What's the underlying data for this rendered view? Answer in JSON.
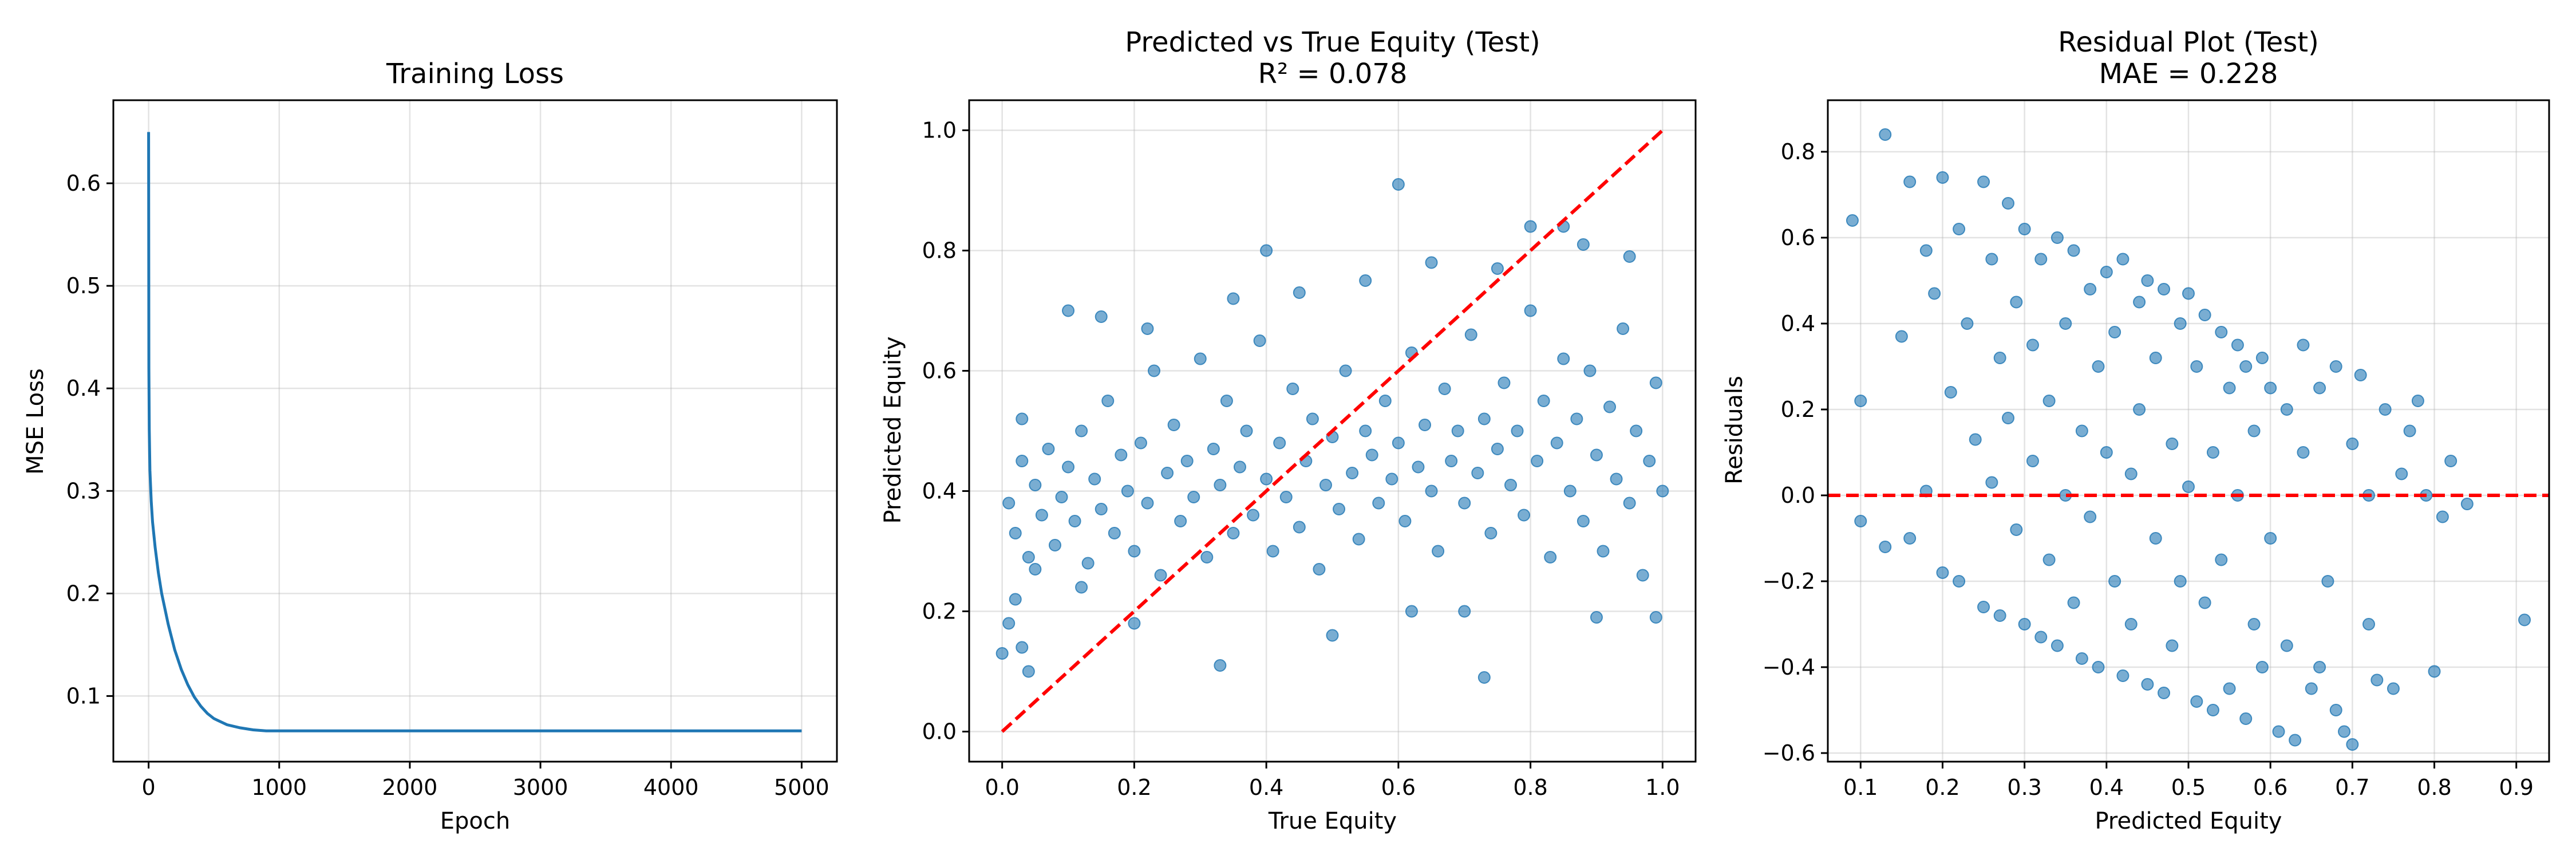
{
  "chart_data": [
    {
      "type": "line",
      "title": "Training Loss",
      "xlabel": "Epoch",
      "ylabel": "MSE Loss",
      "xlim": [
        -270,
        5270
      ],
      "ylim": [
        0.036,
        0.681
      ],
      "xticks": [
        0,
        1000,
        2000,
        3000,
        4000,
        5000
      ],
      "yticks": [
        0.1,
        0.2,
        0.3,
        0.4,
        0.5,
        0.6
      ],
      "grid": true,
      "series": [
        {
          "color": "#1f77b4",
          "x": [
            0,
            2,
            5,
            10,
            20,
            30,
            50,
            75,
            100,
            150,
            200,
            250,
            300,
            350,
            400,
            450,
            500,
            600,
            700,
            800,
            900,
            1000,
            1500,
            2000,
            3000,
            4000,
            5000
          ],
          "y": [
            0.65,
            0.42,
            0.36,
            0.32,
            0.29,
            0.27,
            0.245,
            0.22,
            0.2,
            0.17,
            0.145,
            0.126,
            0.111,
            0.099,
            0.09,
            0.083,
            0.078,
            0.072,
            0.069,
            0.067,
            0.066,
            0.066,
            0.066,
            0.066,
            0.066,
            0.066,
            0.066
          ]
        }
      ]
    },
    {
      "type": "scatter",
      "title": "Predicted vs True Equity (Test)",
      "subtitle": "R² = 0.078",
      "xlabel": "True Equity",
      "ylabel": "Predicted Equity",
      "xlim": [
        -0.05,
        1.05
      ],
      "ylim": [
        -0.05,
        1.05
      ],
      "xticks": [
        0.0,
        0.2,
        0.4,
        0.6,
        0.8,
        1.0
      ],
      "yticks": [
        0.0,
        0.2,
        0.4,
        0.6,
        0.8,
        1.0
      ],
      "grid": true,
      "point_color": "#1f77b4",
      "point_alpha": 0.6,
      "reference_line": {
        "x": [
          0,
          1
        ],
        "y": [
          0,
          1
        ],
        "color": "#ff0000",
        "style": "dashed"
      },
      "points": [
        [
          0.01,
          0.38
        ],
        [
          0.02,
          0.33
        ],
        [
          0.03,
          0.45
        ],
        [
          0.04,
          0.29
        ],
        [
          0.05,
          0.41
        ],
        [
          0.06,
          0.36
        ],
        [
          0.02,
          0.22
        ],
        [
          0.03,
          0.52
        ],
        [
          0.05,
          0.27
        ],
        [
          0.07,
          0.47
        ],
        [
          0.08,
          0.31
        ],
        [
          0.09,
          0.39
        ],
        [
          0.1,
          0.44
        ],
        [
          0.11,
          0.35
        ],
        [
          0.12,
          0.5
        ],
        [
          0.13,
          0.28
        ],
        [
          0.14,
          0.42
        ],
        [
          0.15,
          0.37
        ],
        [
          0.16,
          0.55
        ],
        [
          0.17,
          0.33
        ],
        [
          0.18,
          0.46
        ],
        [
          0.19,
          0.4
        ],
        [
          0.2,
          0.3
        ],
        [
          0.21,
          0.48
        ],
        [
          0.22,
          0.38
        ],
        [
          0.23,
          0.6
        ],
        [
          0.24,
          0.26
        ],
        [
          0.25,
          0.43
        ],
        [
          0.26,
          0.51
        ],
        [
          0.27,
          0.35
        ],
        [
          0.28,
          0.45
        ],
        [
          0.29,
          0.39
        ],
        [
          0.3,
          0.62
        ],
        [
          0.31,
          0.29
        ],
        [
          0.32,
          0.47
        ],
        [
          0.33,
          0.41
        ],
        [
          0.34,
          0.55
        ],
        [
          0.35,
          0.33
        ],
        [
          0.36,
          0.44
        ],
        [
          0.37,
          0.5
        ],
        [
          0.38,
          0.36
        ],
        [
          0.39,
          0.65
        ],
        [
          0.4,
          0.42
        ],
        [
          0.41,
          0.3
        ],
        [
          0.42,
          0.48
        ],
        [
          0.43,
          0.39
        ],
        [
          0.44,
          0.57
        ],
        [
          0.45,
          0.34
        ],
        [
          0.46,
          0.45
        ],
        [
          0.47,
          0.52
        ],
        [
          0.48,
          0.27
        ],
        [
          0.49,
          0.41
        ],
        [
          0.5,
          0.49
        ],
        [
          0.51,
          0.37
        ],
        [
          0.52,
          0.6
        ],
        [
          0.53,
          0.43
        ],
        [
          0.54,
          0.32
        ],
        [
          0.55,
          0.5
        ],
        [
          0.56,
          0.46
        ],
        [
          0.57,
          0.38
        ],
        [
          0.58,
          0.55
        ],
        [
          0.59,
          0.42
        ],
        [
          0.6,
          0.48
        ],
        [
          0.61,
          0.35
        ],
        [
          0.62,
          0.63
        ],
        [
          0.63,
          0.44
        ],
        [
          0.64,
          0.51
        ],
        [
          0.65,
          0.4
        ],
        [
          0.66,
          0.3
        ],
        [
          0.67,
          0.57
        ],
        [
          0.68,
          0.45
        ],
        [
          0.69,
          0.5
        ],
        [
          0.7,
          0.38
        ],
        [
          0.71,
          0.66
        ],
        [
          0.72,
          0.43
        ],
        [
          0.73,
          0.52
        ],
        [
          0.74,
          0.33
        ],
        [
          0.75,
          0.47
        ],
        [
          0.76,
          0.58
        ],
        [
          0.77,
          0.41
        ],
        [
          0.78,
          0.5
        ],
        [
          0.79,
          0.36
        ],
        [
          0.8,
          0.7
        ],
        [
          0.81,
          0.45
        ],
        [
          0.82,
          0.55
        ],
        [
          0.83,
          0.29
        ],
        [
          0.84,
          0.48
        ],
        [
          0.85,
          0.62
        ],
        [
          0.86,
          0.4
        ],
        [
          0.87,
          0.52
        ],
        [
          0.88,
          0.35
        ],
        [
          0.89,
          0.6
        ],
        [
          0.9,
          0.46
        ],
        [
          0.91,
          0.3
        ],
        [
          0.92,
          0.54
        ],
        [
          0.93,
          0.42
        ],
        [
          0.94,
          0.67
        ],
        [
          0.95,
          0.38
        ],
        [
          0.96,
          0.5
        ],
        [
          0.97,
          0.26
        ],
        [
          0.98,
          0.45
        ],
        [
          0.99,
          0.58
        ],
        [
          1.0,
          0.4
        ],
        [
          0.01,
          0.18
        ],
        [
          0.03,
          0.14
        ],
        [
          0.04,
          0.1
        ],
        [
          0.0,
          0.13
        ],
        [
          0.1,
          0.7
        ],
        [
          0.15,
          0.69
        ],
        [
          0.2,
          0.18
        ],
        [
          0.33,
          0.11
        ],
        [
          0.4,
          0.8
        ],
        [
          0.6,
          0.91
        ],
        [
          0.62,
          0.2
        ],
        [
          0.73,
          0.09
        ],
        [
          0.8,
          0.84
        ],
        [
          0.85,
          0.84
        ],
        [
          0.9,
          0.19
        ],
        [
          0.95,
          0.79
        ],
        [
          0.99,
          0.19
        ],
        [
          0.12,
          0.24
        ],
        [
          0.22,
          0.67
        ],
        [
          0.35,
          0.72
        ],
        [
          0.45,
          0.73
        ],
        [
          0.5,
          0.16
        ],
        [
          0.55,
          0.75
        ],
        [
          0.65,
          0.78
        ],
        [
          0.7,
          0.2
        ],
        [
          0.75,
          0.77
        ],
        [
          0.88,
          0.81
        ]
      ]
    },
    {
      "type": "scatter",
      "title": "Residual Plot (Test)",
      "subtitle": "MAE = 0.228",
      "xlabel": "Predicted Equity",
      "ylabel": "Residuals",
      "xlim": [
        0.06,
        0.94
      ],
      "ylim": [
        -0.62,
        0.92
      ],
      "xticks": [
        0.1,
        0.2,
        0.3,
        0.4,
        0.5,
        0.6,
        0.7,
        0.8,
        0.9
      ],
      "yticks": [
        -0.6,
        -0.4,
        -0.2,
        0.0,
        0.2,
        0.4,
        0.6,
        0.8
      ],
      "grid": true,
      "point_color": "#1f77b4",
      "point_alpha": 0.6,
      "reference_line": {
        "y": 0,
        "color": "#ff0000",
        "style": "dashed"
      },
      "points": [
        [
          0.09,
          0.64
        ],
        [
          0.1,
          -0.06
        ],
        [
          0.1,
          0.22
        ],
        [
          0.13,
          0.84
        ],
        [
          0.13,
          -0.12
        ],
        [
          0.15,
          0.37
        ],
        [
          0.16,
          0.73
        ],
        [
          0.16,
          -0.1
        ],
        [
          0.18,
          0.57
        ],
        [
          0.18,
          0.01
        ],
        [
          0.19,
          0.47
        ],
        [
          0.2,
          0.74
        ],
        [
          0.2,
          -0.18
        ],
        [
          0.21,
          0.24
        ],
        [
          0.22,
          0.62
        ],
        [
          0.22,
          -0.2
        ],
        [
          0.23,
          0.4
        ],
        [
          0.24,
          0.13
        ],
        [
          0.25,
          0.73
        ],
        [
          0.25,
          -0.26
        ],
        [
          0.26,
          0.55
        ],
        [
          0.26,
          0.03
        ],
        [
          0.27,
          0.32
        ],
        [
          0.27,
          -0.28
        ],
        [
          0.28,
          0.68
        ],
        [
          0.28,
          0.18
        ],
        [
          0.29,
          -0.08
        ],
        [
          0.29,
          0.45
        ],
        [
          0.3,
          -0.3
        ],
        [
          0.3,
          0.62
        ],
        [
          0.31,
          0.08
        ],
        [
          0.31,
          0.35
        ],
        [
          0.32,
          -0.33
        ],
        [
          0.32,
          0.55
        ],
        [
          0.33,
          -0.15
        ],
        [
          0.33,
          0.22
        ],
        [
          0.34,
          0.6
        ],
        [
          0.34,
          -0.35
        ],
        [
          0.35,
          0.4
        ],
        [
          0.35,
          0.0
        ],
        [
          0.36,
          -0.25
        ],
        [
          0.36,
          0.57
        ],
        [
          0.37,
          0.15
        ],
        [
          0.37,
          -0.38
        ],
        [
          0.38,
          0.48
        ],
        [
          0.38,
          -0.05
        ],
        [
          0.39,
          0.3
        ],
        [
          0.39,
          -0.4
        ],
        [
          0.4,
          0.52
        ],
        [
          0.4,
          0.1
        ],
        [
          0.41,
          -0.2
        ],
        [
          0.41,
          0.38
        ],
        [
          0.42,
          -0.42
        ],
        [
          0.42,
          0.55
        ],
        [
          0.43,
          0.05
        ],
        [
          0.43,
          -0.3
        ],
        [
          0.44,
          0.45
        ],
        [
          0.44,
          0.2
        ],
        [
          0.45,
          -0.44
        ],
        [
          0.45,
          0.5
        ],
        [
          0.46,
          -0.1
        ],
        [
          0.46,
          0.32
        ],
        [
          0.47,
          -0.46
        ],
        [
          0.47,
          0.48
        ],
        [
          0.48,
          0.12
        ],
        [
          0.48,
          -0.35
        ],
        [
          0.49,
          0.4
        ],
        [
          0.49,
          -0.2
        ],
        [
          0.5,
          0.47
        ],
        [
          0.5,
          0.02
        ],
        [
          0.51,
          -0.48
        ],
        [
          0.51,
          0.3
        ],
        [
          0.52,
          0.42
        ],
        [
          0.52,
          -0.25
        ],
        [
          0.53,
          0.1
        ],
        [
          0.53,
          -0.5
        ],
        [
          0.54,
          0.38
        ],
        [
          0.54,
          -0.15
        ],
        [
          0.55,
          0.25
        ],
        [
          0.55,
          -0.45
        ],
        [
          0.56,
          0.35
        ],
        [
          0.56,
          0.0
        ],
        [
          0.57,
          -0.52
        ],
        [
          0.57,
          0.3
        ],
        [
          0.58,
          -0.3
        ],
        [
          0.58,
          0.15
        ],
        [
          0.59,
          0.32
        ],
        [
          0.59,
          -0.4
        ],
        [
          0.6,
          -0.1
        ],
        [
          0.6,
          0.25
        ],
        [
          0.61,
          -0.55
        ],
        [
          0.62,
          0.2
        ],
        [
          0.62,
          -0.35
        ],
        [
          0.63,
          -0.57
        ],
        [
          0.64,
          0.1
        ],
        [
          0.65,
          -0.45
        ],
        [
          0.66,
          0.25
        ],
        [
          0.67,
          -0.2
        ],
        [
          0.68,
          0.3
        ],
        [
          0.69,
          -0.55
        ],
        [
          0.7,
          0.12
        ],
        [
          0.7,
          -0.58
        ],
        [
          0.71,
          0.28
        ],
        [
          0.72,
          -0.3
        ],
        [
          0.74,
          0.2
        ],
        [
          0.75,
          -0.45
        ],
        [
          0.76,
          0.05
        ],
        [
          0.78,
          0.22
        ],
        [
          0.8,
          -0.41
        ],
        [
          0.82,
          0.08
        ],
        [
          0.84,
          -0.02
        ],
        [
          0.91,
          -0.29
        ],
        [
          0.73,
          -0.43
        ],
        [
          0.77,
          0.15
        ],
        [
          0.79,
          0.0
        ],
        [
          0.66,
          -0.4
        ],
        [
          0.68,
          -0.5
        ],
        [
          0.64,
          0.35
        ],
        [
          0.72,
          0.0
        ],
        [
          0.81,
          -0.05
        ]
      ]
    }
  ]
}
